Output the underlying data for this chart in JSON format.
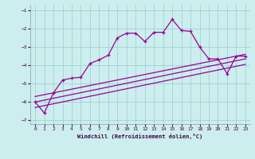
{
  "x": [
    0,
    1,
    2,
    3,
    4,
    5,
    6,
    7,
    8,
    9,
    10,
    11,
    12,
    13,
    14,
    15,
    16,
    17,
    18,
    19,
    20,
    21,
    22,
    23
  ],
  "y_main": [
    -6.0,
    -6.6,
    -5.5,
    -4.8,
    -4.7,
    -4.65,
    -3.9,
    -3.7,
    -3.45,
    -2.5,
    -2.25,
    -2.25,
    -2.7,
    -2.2,
    -2.2,
    -1.5,
    -2.1,
    -2.15,
    -3.0,
    -3.65,
    -3.65,
    -4.45,
    -3.5,
    -3.5
  ],
  "ref_lines": [
    {
      "x0": 0,
      "y0": -5.7,
      "x1": 23,
      "y1": -3.4
    },
    {
      "x0": 0,
      "y0": -6.0,
      "x1": 23,
      "y1": -3.65
    },
    {
      "x0": 0,
      "y0": -6.3,
      "x1": 23,
      "y1": -3.95
    }
  ],
  "line_color": "#990099",
  "bg_color": "#cceeee",
  "grid_color": "#99cccc",
  "xlabel": "Windchill (Refroidissement éolien,°C)",
  "ylim": [
    -7.2,
    -0.7
  ],
  "xlim": [
    -0.5,
    23.5
  ],
  "yticks": [
    -7,
    -6,
    -5,
    -4,
    -3,
    -2,
    -1
  ],
  "xticks": [
    0,
    1,
    2,
    3,
    4,
    5,
    6,
    7,
    8,
    9,
    10,
    11,
    12,
    13,
    14,
    15,
    16,
    17,
    18,
    19,
    20,
    21,
    22,
    23
  ]
}
